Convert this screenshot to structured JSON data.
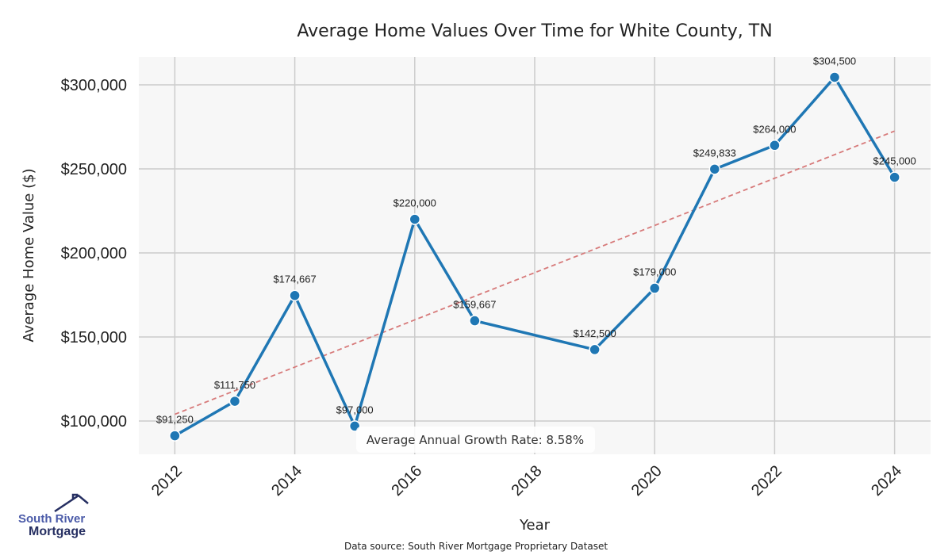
{
  "chart_data": {
    "type": "line",
    "title": "Average Home Values Over Time for White County, TN",
    "xlabel": "Year",
    "ylabel": "Average Home Value ($)",
    "x": [
      2012,
      2013,
      2014,
      2015,
      2016,
      2017,
      2019,
      2020,
      2021,
      2022,
      2023,
      2024
    ],
    "values": [
      91250,
      111750,
      174667,
      97000,
      220000,
      159667,
      142500,
      179000,
      249833,
      264000,
      304500,
      245000
    ],
    "data_labels": [
      "$91,250",
      "$111,750",
      "$174,667",
      "$97,000",
      "$220,000",
      "$159,667",
      "$142,500",
      "$179,000",
      "$249,833",
      "$264,000",
      "$304,500",
      "$245,000"
    ],
    "xticks": [
      2012,
      2014,
      2016,
      2018,
      2020,
      2022,
      2024
    ],
    "yticks": [
      100000,
      150000,
      200000,
      250000,
      300000
    ],
    "ytick_labels": [
      "$100,000",
      "$150,000",
      "$200,000",
      "$250,000",
      "$300,000"
    ],
    "xlim": [
      2011.4,
      2024.6
    ],
    "ylim": [
      80200,
      316500
    ],
    "grid": true,
    "trend_line": {
      "x": [
        2012,
        2024
      ],
      "y": [
        104000,
        272500
      ],
      "style": "dashed"
    },
    "annotation": "Average Annual Growth Rate: 8.58%",
    "source": "Data source: South River Mortgage Proprietary Dataset",
    "colors": {
      "line": "#1f77b4",
      "trend": "#d77a7a",
      "plot_bg": "#f7f7f7",
      "grid": "#cccccc"
    }
  },
  "logo": {
    "line1": "South River",
    "line2": "Mortgage"
  }
}
